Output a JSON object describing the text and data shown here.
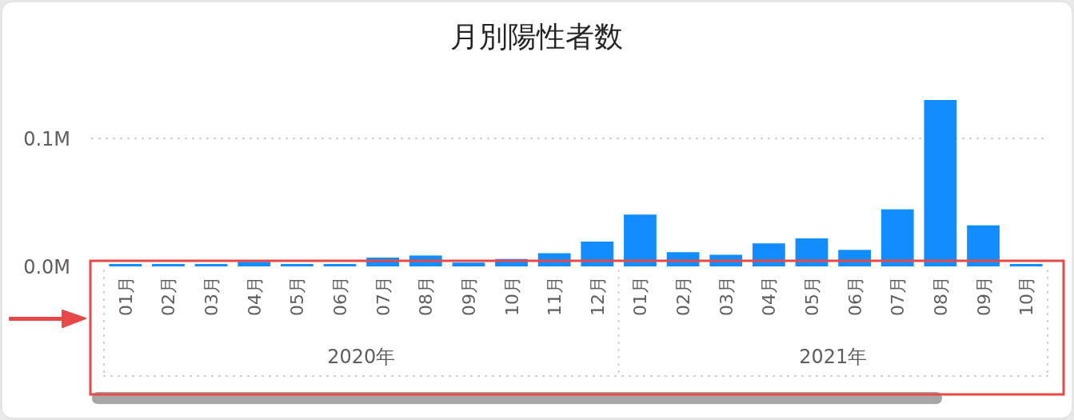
{
  "chart_data": {
    "type": "bar",
    "title": "月別陽性者数",
    "categories": [
      "01月",
      "02月",
      "03月",
      "04月",
      "05月",
      "06月",
      "07月",
      "08月",
      "09月",
      "10月",
      "11月",
      "12月",
      "01月",
      "02月",
      "03月",
      "04月",
      "05月",
      "06月",
      "07月",
      "08月",
      "09月",
      "10月"
    ],
    "values": [
      1900,
      1900,
      1900,
      3600,
      1900,
      1900,
      6900,
      8500,
      3000,
      5800,
      10300,
      19400,
      40500,
      11100,
      9100,
      18000,
      21900,
      12900,
      44600,
      130000,
      32100,
      1900
    ],
    "color": "#118dff",
    "ylim": [
      0,
      135000
    ],
    "yticks": [
      {
        "value": 0,
        "label": "0.0M"
      },
      {
        "value": 100000,
        "label": "0.1M"
      }
    ],
    "grid": "y",
    "annotations": [
      "2020年",
      "2021年"
    ]
  }
}
